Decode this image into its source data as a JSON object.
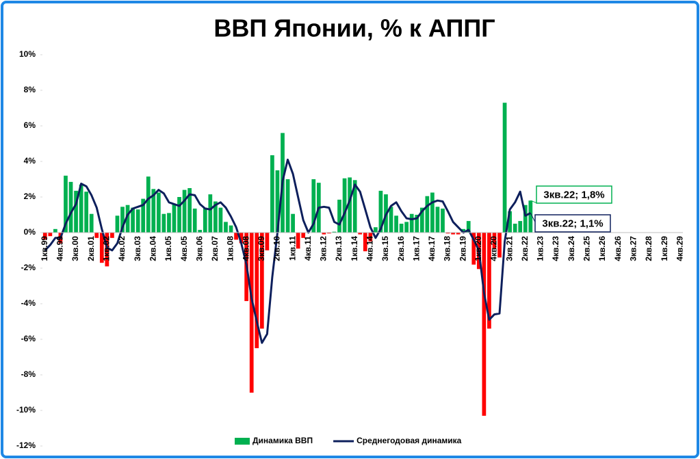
{
  "chart_data": {
    "type": "combo",
    "title": "ВВП Японии, % к АППГ",
    "categories": [
      "1кв.99",
      null,
      null,
      "4кв.99",
      null,
      null,
      "3кв.00",
      null,
      null,
      "2кв.01",
      null,
      null,
      "1кв.02",
      null,
      null,
      "4кв.02",
      null,
      null,
      "3кв.03",
      null,
      null,
      "2кв.04",
      null,
      null,
      "1кв.05",
      null,
      null,
      "4кв.05",
      null,
      null,
      "3кв.06",
      null,
      null,
      "2кв.07",
      null,
      null,
      "1кв.08",
      null,
      null,
      "4кв.08",
      null,
      null,
      "3кв.09",
      null,
      null,
      "2кв.10",
      null,
      null,
      "1кв.11",
      null,
      null,
      "4кв.11",
      null,
      null,
      "3кв.12",
      null,
      null,
      "2кв.13",
      null,
      null,
      "1кв.14",
      null,
      null,
      "4кв.14",
      null,
      null,
      "3кв.15",
      null,
      null,
      "2кв.16",
      null,
      null,
      "1кв.17",
      null,
      null,
      "4кв.17",
      null,
      null,
      "3кв.18",
      null,
      null,
      "2кв.19",
      null,
      null,
      "1кв.20",
      null,
      null,
      "4кв.20",
      null,
      null,
      "3кв.21",
      null,
      null,
      "2кв.22",
      null,
      null,
      "1кв.23",
      null,
      null,
      "4кв.23",
      null,
      null,
      "3кв.24",
      null,
      null,
      "2кв.25",
      null,
      null,
      "1кв.26",
      null,
      null,
      "4кв.26",
      null,
      null,
      "3кв.27",
      null,
      null,
      "2кв.28",
      null,
      null,
      "1кв.29",
      null,
      null,
      "4кв.29"
    ],
    "series": [
      {
        "name": "Динамика ВВП",
        "type": "bar",
        "color": "#00b050",
        "negative_color": "#ff0000",
        "values": [
          -0.4,
          -0.2,
          0.2,
          -0.6,
          3.2,
          2.85,
          2.35,
          2.7,
          2.3,
          1.05,
          -0.3,
          -1.7,
          -1.9,
          -0.3,
          0.95,
          1.45,
          1.55,
          1.4,
          1.3,
          1.9,
          3.15,
          2.45,
          2.25,
          1.05,
          1.1,
          1.6,
          2.0,
          2.4,
          2.5,
          1.35,
          0.15,
          1.4,
          2.15,
          1.75,
          1.4,
          0.6,
          0.4,
          -0.4,
          -0.6,
          -3.85,
          -9.0,
          -6.5,
          -5.4,
          -1.0,
          4.35,
          3.5,
          5.6,
          3.0,
          1.05,
          -0.9,
          -0.3,
          0.0,
          3.0,
          2.8,
          -0.1,
          -0.05,
          0.05,
          1.85,
          3.05,
          3.1,
          2.95,
          -0.1,
          -1.05,
          -0.5,
          0.3,
          2.35,
          2.15,
          1.45,
          0.95,
          0.5,
          0.6,
          1.05,
          1.0,
          1.4,
          2.05,
          2.25,
          1.45,
          1.35,
          -0.05,
          -0.1,
          -0.1,
          0.2,
          0.65,
          -1.8,
          -2.05,
          -10.3,
          -5.4,
          -0.9,
          -1.4,
          7.3,
          1.2,
          0.5,
          0.65,
          1.55,
          1.8,
          null,
          null,
          null,
          null,
          null,
          null,
          null,
          null,
          null,
          null,
          null,
          null,
          null,
          null,
          null,
          null,
          null,
          null,
          null,
          null,
          null,
          null,
          null,
          null,
          null,
          null,
          null,
          null,
          null
        ]
      },
      {
        "name": "Среднегодовая динамика",
        "type": "line",
        "color": "#0d1f5c",
        "values": [
          -1.0,
          -0.7,
          -0.3,
          -0.3,
          0.5,
          1.1,
          1.6,
          2.75,
          2.6,
          2.1,
          1.4,
          0.2,
          -0.85,
          -1.0,
          -0.6,
          0.3,
          1.0,
          1.35,
          1.45,
          1.55,
          1.9,
          2.1,
          2.4,
          2.2,
          1.7,
          1.6,
          1.5,
          1.8,
          2.15,
          2.1,
          1.6,
          1.35,
          1.3,
          1.55,
          1.7,
          1.4,
          0.9,
          0.3,
          -0.6,
          -1.8,
          -3.7,
          -5.0,
          -6.2,
          -5.7,
          -2.5,
          0.0,
          2.9,
          4.1,
          3.3,
          2.0,
          0.7,
          0.0,
          0.5,
          1.4,
          1.45,
          1.4,
          0.6,
          0.45,
          1.1,
          1.8,
          2.7,
          2.3,
          1.3,
          0.3,
          -0.3,
          0.2,
          1.0,
          1.5,
          1.7,
          1.2,
          0.8,
          0.75,
          0.8,
          1.2,
          1.5,
          1.7,
          1.8,
          1.75,
          1.2,
          0.6,
          0.3,
          0.0,
          0.15,
          -0.4,
          -1.0,
          -3.4,
          -4.9,
          -4.6,
          -4.55,
          -0.5,
          1.3,
          1.7,
          2.3,
          0.95,
          1.1,
          null,
          null,
          null,
          null,
          null,
          null,
          null,
          null,
          null,
          null,
          null,
          null,
          null,
          null,
          null,
          null,
          null,
          null,
          null,
          null,
          null,
          null,
          null,
          null,
          null,
          null,
          null,
          null,
          null
        ]
      }
    ],
    "ylim": [
      -12,
      10
    ],
    "yticks": [
      {
        "value": -12,
        "label": "-12%"
      },
      {
        "value": -10,
        "label": "-10%"
      },
      {
        "value": -8,
        "label": "-8%"
      },
      {
        "value": -6,
        "label": "-6%"
      },
      {
        "value": -4,
        "label": "-4%"
      },
      {
        "value": -2,
        "label": "-2%"
      },
      {
        "value": 0,
        "label": "0%"
      },
      {
        "value": 2,
        "label": "2%"
      },
      {
        "value": 4,
        "label": "4%"
      },
      {
        "value": 6,
        "label": "6%"
      },
      {
        "value": 8,
        "label": "8%"
      },
      {
        "value": 10,
        "label": "10%"
      }
    ],
    "grid": false,
    "legend": "bottom",
    "annotations": [
      {
        "text": "3кв.22; 1,8%",
        "color": "#00b050"
      },
      {
        "text": "3кв.22; 1,1%",
        "color": "#0d1f5c"
      }
    ]
  }
}
